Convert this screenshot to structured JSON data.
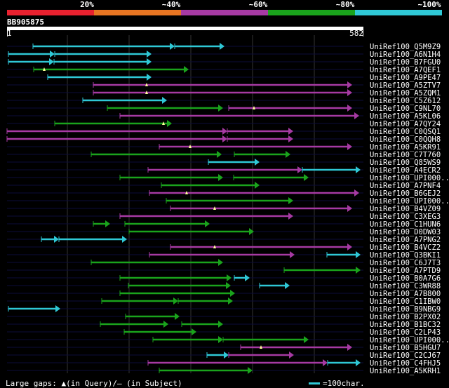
{
  "scale": {
    "labels": [
      "20%",
      "~40%",
      "~60%",
      "~80%",
      "~100%"
    ],
    "colors": [
      "#e8212f",
      "#e77522",
      "#a63aa3",
      "#1aa31c",
      "#2fc8d6"
    ]
  },
  "query": {
    "id": "BB905875",
    "start": "1",
    "end": "582",
    "length": 582
  },
  "hits": [
    {
      "label": "UniRef100_Q5M9Z9",
      "segs": [
        [
          47,
          249,
          4
        ],
        [
          249,
          320,
          4
        ]
      ]
    },
    {
      "label": "UniRef100_A6N1H4",
      "segs": [
        [
          12,
          78,
          4
        ],
        [
          78,
          216,
          4
        ]
      ]
    },
    {
      "label": "UniRef100_B7FGU0",
      "segs": [
        [
          12,
          77,
          4
        ],
        [
          77,
          216,
          4
        ]
      ]
    },
    {
      "label": "UniRef100_A7QEF1",
      "segs": [
        [
          48,
          269,
          3
        ]
      ],
      "gaps": [
        63
      ]
    },
    {
      "label": "UniRef100_A9PE47",
      "segs": [
        [
          68,
          216,
          4
        ]
      ]
    },
    {
      "label": "UniRef100_A5ZTV7",
      "segs": [
        [
          133,
          502,
          2
        ]
      ],
      "gaps": [
        209
      ]
    },
    {
      "label": "UniRef100_A5ZQM1",
      "segs": [
        [
          133,
          502,
          2
        ]
      ],
      "gaps": [
        209
      ]
    },
    {
      "label": "UniRef100_C5Z612",
      "segs": [
        [
          118,
          238,
          4
        ]
      ]
    },
    {
      "label": "UniRef100_C9NL70",
      "segs": [
        [
          153,
          318,
          3
        ],
        [
          326,
          502,
          2
        ]
      ],
      "gaps": [
        362
      ]
    },
    {
      "label": "UniRef100_A5KL06",
      "segs": [
        [
          171,
          512,
          2
        ]
      ]
    },
    {
      "label": "UniRef100_A7QY24",
      "segs": [
        [
          78,
          245,
          3
        ]
      ],
      "gaps": [
        233
      ]
    },
    {
      "label": "UniRef100_C0QSQ1",
      "segs": [
        [
          10,
          324,
          2
        ],
        [
          324,
          418,
          2
        ]
      ]
    },
    {
      "label": "UniRef100_C0QQH8",
      "segs": [
        [
          10,
          324,
          2
        ],
        [
          324,
          418,
          2
        ]
      ]
    },
    {
      "label": "UniRef100_A5KR91",
      "segs": [
        [
          227,
          502,
          2
        ]
      ],
      "gaps": [
        271
      ]
    },
    {
      "label": "UniRef100_C7T760",
      "segs": [
        [
          130,
          316,
          3
        ],
        [
          334,
          414,
          3
        ]
      ]
    },
    {
      "label": "UniRef100_Q85WS9",
      "segs": [
        [
          297,
          370,
          4
        ]
      ]
    },
    {
      "label": "UniRef100_A4ECR2",
      "segs": [
        [
          211,
          431,
          2
        ],
        [
          431,
          514,
          4
        ]
      ]
    },
    {
      "label": "UniRef100_UPI000..",
      "segs": [
        [
          171,
          318,
          3
        ],
        [
          333,
          440,
          3
        ]
      ]
    },
    {
      "label": "UniRef100_A7PNF4",
      "segs": [
        [
          230,
          370,
          3
        ]
      ]
    },
    {
      "label": "UniRef100_B6GEJ2",
      "segs": [
        [
          213,
          512,
          2
        ]
      ],
      "gaps": [
        266
      ]
    },
    {
      "label": "UniRef100_UPI000..",
      "segs": [
        [
          237,
          418,
          3
        ]
      ]
    },
    {
      "label": "UniRef100_B4VZ09",
      "segs": [
        [
          243,
          502,
          2
        ]
      ],
      "gaps": [
        306
      ]
    },
    {
      "label": "UniRef100_C3XEG3",
      "segs": [
        [
          171,
          418,
          2
        ]
      ]
    },
    {
      "label": "UniRef100_C1HUN6",
      "segs": [
        [
          133,
          157,
          3
        ],
        [
          178,
          299,
          3
        ]
      ]
    },
    {
      "label": "UniRef100_D0DW03",
      "segs": [
        [
          184,
          362,
          3
        ]
      ]
    },
    {
      "label": "UniRef100_A7PNG2",
      "segs": [
        [
          59,
          84,
          4
        ],
        [
          84,
          181,
          4
        ]
      ]
    },
    {
      "label": "UniRef100_B4VCZ2",
      "segs": [
        [
          243,
          502,
          2
        ]
      ],
      "gaps": [
        306
      ]
    },
    {
      "label": "UniRef100_Q3BKI1",
      "segs": [
        [
          213,
          420,
          2
        ],
        [
          466,
          514,
          4
        ]
      ]
    },
    {
      "label": "UniRef100_C6J7T3",
      "segs": [
        [
          130,
          318,
          3
        ]
      ]
    },
    {
      "label": "UniRef100_A7PTD9",
      "segs": [
        [
          405,
          514,
          3
        ]
      ]
    },
    {
      "label": "UniRef100_B0A7G6",
      "segs": [
        [
          171,
          330,
          3
        ],
        [
          334,
          356,
          4
        ]
      ]
    },
    {
      "label": "UniRef100_C3WR88",
      "segs": [
        [
          183,
          329,
          3
        ],
        [
          370,
          413,
          4
        ]
      ]
    },
    {
      "label": "UniRef100_A7B800",
      "segs": [
        [
          171,
          335,
          3
        ]
      ]
    },
    {
      "label": "UniRef100_C1IBW0",
      "segs": [
        [
          145,
          254,
          3
        ],
        [
          254,
          332,
          3
        ]
      ]
    },
    {
      "label": "UniRef100_B9NBG9",
      "segs": [
        [
          12,
          86,
          4
        ]
      ]
    },
    {
      "label": "UniRef100_B2PX02",
      "segs": [
        [
          179,
          256,
          3
        ]
      ]
    },
    {
      "label": "UniRef100_B1BC32",
      "segs": [
        [
          143,
          240,
          3
        ],
        [
          259,
          318,
          3
        ]
      ]
    },
    {
      "label": "UniRef100_C2LP43",
      "segs": [
        [
          177,
          280,
          3
        ]
      ]
    },
    {
      "label": "UniRef100_UPI000..",
      "segs": [
        [
          218,
          318,
          3
        ],
        [
          318,
          440,
          3
        ]
      ]
    },
    {
      "label": "UniRef100_B5HGU7",
      "segs": [
        [
          343,
          502,
          2
        ]
      ],
      "gaps": [
        372
      ]
    },
    {
      "label": "UniRef100_C2CJ67",
      "segs": [
        [
          295,
          326,
          4
        ],
        [
          326,
          419,
          2
        ]
      ]
    },
    {
      "label": "UniRef100_C4FHJ5",
      "segs": [
        [
          211,
          467,
          2
        ],
        [
          467,
          514,
          4
        ]
      ]
    },
    {
      "label": "UniRef100_A5KRH1",
      "segs": [
        [
          227,
          360,
          3
        ]
      ]
    }
  ],
  "legend": {
    "large_gaps": "Large gaps: ▲(in Query)/– (in Subject)",
    "unit": "=100char."
  }
}
